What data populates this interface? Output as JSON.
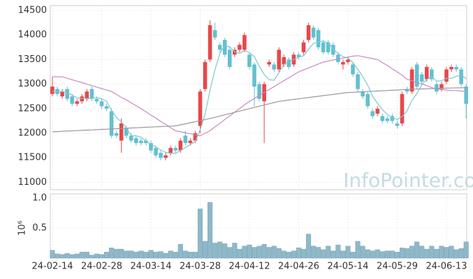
{
  "chart_data": [
    {
      "type": "candlestick",
      "watermark": "InfoPointer.com",
      "up_color": "#e8474a",
      "down_color": "#63c0d0",
      "open": [
        12800,
        12900,
        12750,
        12900,
        12750,
        12600,
        12650,
        12700,
        12900,
        12700,
        12650,
        12550,
        12450,
        12000,
        11850,
        12100,
        11950,
        11900,
        11850,
        11850,
        11800,
        11700,
        11600,
        11500,
        11600,
        11700,
        11650,
        11950,
        11800,
        11850,
        12150,
        12900,
        13500,
        14100,
        13800,
        13900,
        13700,
        13600,
        13700,
        13700,
        13600,
        13400,
        13000,
        12650,
        13400,
        13400,
        13300,
        13400,
        13500,
        13400,
        13600,
        13650,
        13900,
        14150,
        14100,
        13850,
        13850,
        13800,
        13600,
        13400,
        13450,
        13400,
        13200,
        12850,
        12800,
        12450,
        12400,
        12350,
        12300,
        12350,
        12200,
        12200,
        12900,
        12850,
        13400,
        13200,
        13100,
        13300,
        13000,
        12900,
        13050,
        13300,
        13350,
        13300,
        12950
      ],
      "high": [
        13150,
        12950,
        12900,
        12950,
        12800,
        12700,
        12800,
        12900,
        12950,
        12750,
        12700,
        12600,
        12500,
        12050,
        12300,
        12150,
        12000,
        11950,
        11900,
        11900,
        11850,
        11750,
        11650,
        11600,
        11750,
        11750,
        11900,
        12050,
        11900,
        12050,
        12900,
        13500,
        14300,
        14250,
        13850,
        13950,
        13750,
        13750,
        13850,
        14050,
        13650,
        13450,
        13050,
        13050,
        13500,
        13450,
        13750,
        13600,
        13550,
        13650,
        13650,
        13900,
        14250,
        14200,
        14150,
        13900,
        13900,
        13850,
        13650,
        13500,
        13550,
        13450,
        13250,
        12900,
        12850,
        12500,
        12550,
        12400,
        12350,
        12400,
        12250,
        12850,
        12950,
        13350,
        13450,
        13250,
        13400,
        13350,
        13050,
        13050,
        13350,
        13400,
        13400,
        13350,
        13000
      ],
      "low": [
        12750,
        12750,
        12700,
        12650,
        12550,
        12550,
        12600,
        12650,
        12650,
        12600,
        12500,
        12450,
        11900,
        11900,
        11600,
        11900,
        11800,
        11750,
        11750,
        11750,
        11600,
        11500,
        11450,
        11450,
        11550,
        11600,
        11600,
        11750,
        11750,
        11800,
        12000,
        12850,
        13450,
        13900,
        13650,
        13550,
        13300,
        13550,
        13650,
        13650,
        13300,
        12550,
        12650,
        11800,
        13350,
        13250,
        13250,
        13350,
        13300,
        13350,
        13500,
        13600,
        13850,
        13900,
        13700,
        13600,
        13600,
        13550,
        13400,
        13300,
        13400,
        13150,
        12850,
        12700,
        12500,
        12300,
        12350,
        12200,
        12200,
        12200,
        12100,
        12150,
        12800,
        12800,
        12900,
        13000,
        13050,
        13050,
        12800,
        12850,
        13000,
        13250,
        13250,
        12950,
        12300
      ],
      "close": [
        12950,
        12800,
        12850,
        12700,
        12600,
        12650,
        12750,
        12850,
        12700,
        12650,
        12550,
        12500,
        11950,
        11950,
        12200,
        11950,
        11850,
        11800,
        11800,
        11800,
        11650,
        11550,
        11500,
        11550,
        11700,
        11650,
        11850,
        11800,
        11850,
        12000,
        12850,
        13450,
        14200,
        13950,
        13700,
        13600,
        13350,
        13700,
        13800,
        14000,
        13350,
        12950,
        12700,
        13000,
        13450,
        13300,
        13700,
        13550,
        13350,
        13600,
        13550,
        13850,
        14200,
        13950,
        13750,
        13650,
        13650,
        13600,
        13450,
        13450,
        13500,
        13200,
        12900,
        12750,
        12550,
        12350,
        12500,
        12250,
        12250,
        12250,
        12150,
        12800,
        12850,
        13300,
        12950,
        13050,
        13350,
        13100,
        12850,
        13000,
        13300,
        13350,
        13300,
        13000,
        12600
      ],
      "overlays": [
        {
          "color": "#7cc8cf",
          "values": [
            12850,
            12850,
            12850,
            12830,
            12780,
            12720,
            12710,
            12710,
            12710,
            12730,
            12700,
            12650,
            12470,
            12320,
            12230,
            12110,
            11950,
            11950,
            11920,
            11840,
            11780,
            11720,
            11660,
            11610,
            11590,
            11590,
            11650,
            11710,
            11770,
            11830,
            12070,
            12390,
            12870,
            13290,
            13630,
            13780,
            13760,
            13660,
            13630,
            13690,
            13640,
            13560,
            13360,
            13200,
            13090,
            13080,
            13230,
            13400,
            13470,
            13500,
            13550,
            13580,
            13710,
            13830,
            13860,
            13880,
            13840,
            13720,
            13620,
            13560,
            13530,
            13440,
            13300,
            13160,
            12980,
            12750,
            12610,
            12480,
            12380,
            12320,
            12280,
            12340,
            12460,
            12670,
            12810,
            12990,
            13100,
            13150,
            13060,
            13070,
            13120,
            13120,
            13160,
            13190,
            13110
          ]
        },
        {
          "color": "#c98ac3",
          "values": [
            13150,
            13150,
            13150,
            13120,
            13090,
            13060,
            13030,
            13000,
            12970,
            12940,
            12910,
            12880,
            12850,
            12790,
            12730,
            12680,
            12620,
            12560,
            12500,
            12440,
            12370,
            12310,
            12240,
            12180,
            12110,
            12050,
            12030,
            12010,
            11990,
            11970,
            11950,
            12000,
            12050,
            12130,
            12200,
            12280,
            12350,
            12430,
            12500,
            12580,
            12650,
            12710,
            12770,
            12830,
            12890,
            12950,
            13010,
            13070,
            13130,
            13190,
            13250,
            13290,
            13330,
            13370,
            13410,
            13450,
            13470,
            13490,
            13510,
            13530,
            13550,
            13570,
            13580,
            13560,
            13540,
            13520,
            13500,
            13440,
            13380,
            13310,
            13250,
            13180,
            13100,
            13070,
            13030,
            13000,
            12970,
            12930,
            12900,
            12890,
            12880,
            12870,
            12870,
            12860,
            12850
          ]
        },
        {
          "color": "#999999",
          "values": [
            12030,
            12035,
            12040,
            12044,
            12049,
            12054,
            12059,
            12064,
            12068,
            12073,
            12078,
            12083,
            12088,
            12092,
            12097,
            12102,
            12107,
            12112,
            12116,
            12121,
            12126,
            12131,
            12136,
            12140,
            12145,
            12150,
            12171,
            12193,
            12214,
            12236,
            12257,
            12279,
            12300,
            12325,
            12350,
            12375,
            12400,
            12425,
            12450,
            12475,
            12500,
            12525,
            12550,
            12575,
            12600,
            12625,
            12650,
            12663,
            12676,
            12689,
            12701,
            12714,
            12727,
            12740,
            12753,
            12766,
            12779,
            12791,
            12804,
            12817,
            12830,
            12835,
            12840,
            12845,
            12850,
            12855,
            12860,
            12865,
            12870,
            12875,
            12880,
            12885,
            12890,
            12895,
            12900,
            12903,
            12906,
            12909,
            12912,
            12915,
            12918,
            12921,
            12924,
            12927,
            12930
          ]
        }
      ],
      "ylim": [
        10850,
        14600
      ],
      "yticks": [
        11000,
        11500,
        12000,
        12500,
        13000,
        13500,
        14000,
        14500
      ],
      "grid": true
    },
    {
      "type": "bar",
      "ylabel": "10⁶",
      "color": "#8fb8c8",
      "categories": [
        "24-02-14",
        null,
        null,
        null,
        null,
        null,
        null,
        null,
        null,
        null,
        "24-02-28",
        null,
        null,
        null,
        null,
        null,
        null,
        null,
        null,
        null,
        "24-03-14",
        null,
        null,
        null,
        null,
        null,
        null,
        null,
        null,
        null,
        "24-03-28",
        null,
        null,
        null,
        null,
        null,
        null,
        null,
        null,
        null,
        "24-04-12",
        null,
        null,
        null,
        null,
        null,
        null,
        null,
        null,
        null,
        "24-04-26",
        null,
        null,
        null,
        null,
        null,
        null,
        null,
        null,
        null,
        "24-05-14",
        null,
        null,
        null,
        null,
        null,
        null,
        null,
        null,
        null,
        "24-05-29",
        null,
        null,
        null,
        null,
        null,
        null,
        null,
        null,
        null,
        "24-06-13",
        null,
        null,
        null,
        null
      ],
      "values": [
        0.13,
        0.07,
        0.06,
        0.08,
        0.06,
        0.07,
        0.1,
        0.1,
        0.05,
        0.07,
        0.06,
        0.1,
        0.17,
        0.15,
        0.15,
        0.12,
        0.12,
        0.1,
        0.12,
        0.1,
        0.13,
        0.1,
        0.11,
        0.08,
        0.12,
        0.1,
        0.23,
        0.12,
        0.1,
        0.1,
        0.82,
        0.28,
        0.93,
        0.25,
        0.27,
        0.24,
        0.18,
        0.25,
        0.15,
        0.2,
        0.22,
        0.18,
        0.2,
        0.23,
        0.18,
        0.2,
        0.16,
        0.12,
        0.1,
        0.12,
        0.17,
        0.15,
        0.4,
        0.2,
        0.18,
        0.14,
        0.2,
        0.12,
        0.22,
        0.12,
        0.2,
        0.1,
        0.28,
        0.2,
        0.14,
        0.12,
        0.14,
        0.11,
        0.12,
        0.12,
        0.1,
        0.17,
        0.16,
        0.2,
        0.27,
        0.2,
        0.15,
        0.2,
        0.15,
        0.2,
        0.18,
        0.2,
        0.14,
        0.16,
        0.27
      ],
      "ylim": [
        0,
        1.07
      ],
      "yticks": [
        0.5,
        {
          "value": 1,
          "label": "1.0"
        }
      ],
      "grid": true
    }
  ]
}
